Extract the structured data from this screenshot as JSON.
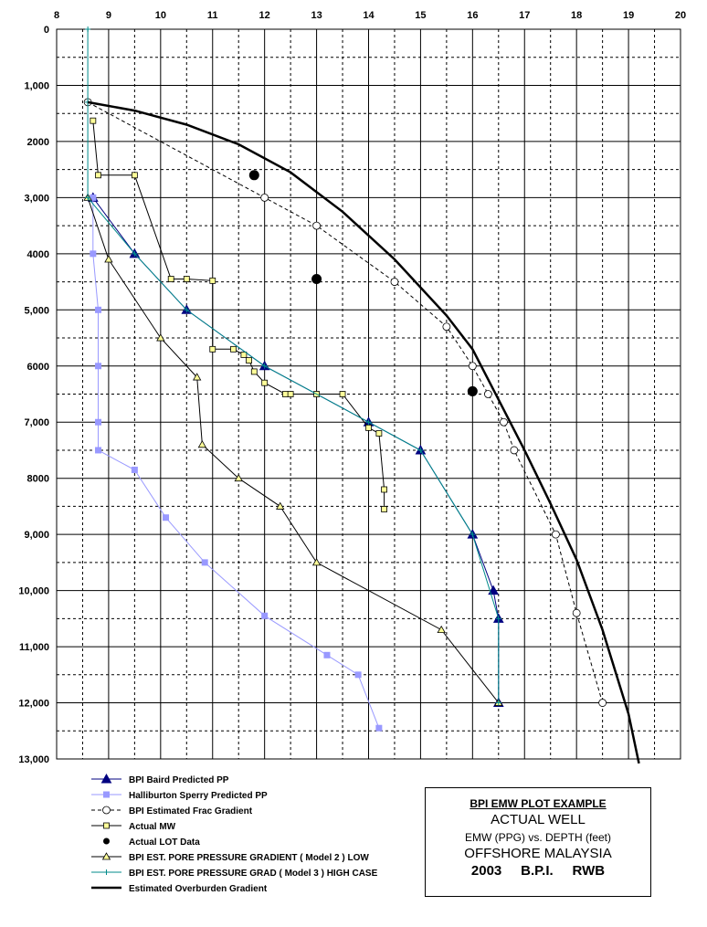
{
  "chart_data": {
    "type": "line",
    "title": "BPI EMW PLOT EXAMPLE",
    "subtitle": "ACTUAL WELL",
    "xlabel": "",
    "ylabel": "",
    "x_axis_position": "top",
    "x_ticks": [
      "8",
      "9",
      "10",
      "11",
      "12",
      "13",
      "14",
      "15",
      "16",
      "17",
      "18",
      "19",
      "20"
    ],
    "y_ticks": [
      "0",
      "1,000",
      "2000",
      "3,000",
      "4000",
      "5,000",
      "6000",
      "7,000",
      "8000",
      "9,000",
      "10,000",
      "11,000",
      "12,000",
      "13,000"
    ],
    "xlim": [
      8,
      20
    ],
    "ylim": [
      0,
      13000
    ],
    "y_inverted": true,
    "grid": true,
    "legend_placement": "bottom-left",
    "series": [
      {
        "name": "BPI Baird Predicted PP",
        "color": "#000080",
        "marker": "triangle-filled",
        "dash": "",
        "points": [
          [
            8.7,
            3000
          ],
          [
            9.5,
            4000
          ],
          [
            10.5,
            5000
          ],
          [
            12,
            6000
          ],
          [
            14,
            7000
          ],
          [
            15,
            7500
          ],
          [
            16,
            9000
          ],
          [
            16.4,
            10000
          ],
          [
            16.5,
            10500
          ],
          [
            16.5,
            12000
          ]
        ]
      },
      {
        "name": "Halliburton Sperry Predicted PP",
        "color": "#9999ff",
        "marker": "square-filled",
        "dash": "",
        "points": [
          [
            8.7,
            3000
          ],
          [
            8.7,
            4000
          ],
          [
            8.8,
            5000
          ],
          [
            8.8,
            6000
          ],
          [
            8.8,
            7000
          ],
          [
            8.8,
            7500
          ],
          [
            9.5,
            7850
          ],
          [
            10.1,
            8700
          ],
          [
            10.85,
            9500
          ],
          [
            12,
            10450
          ],
          [
            13.2,
            11150
          ],
          [
            13.8,
            11500
          ],
          [
            14.2,
            12450
          ]
        ]
      },
      {
        "name": "BPI Estimated Frac Gradient",
        "color": "#000000",
        "marker": "circle-open",
        "dash": "4,3",
        "points": [
          [
            8.6,
            1300
          ],
          [
            12,
            3000
          ],
          [
            13,
            3500
          ],
          [
            14.5,
            4500
          ],
          [
            15.5,
            5300
          ],
          [
            16,
            6000
          ],
          [
            16.3,
            6500
          ],
          [
            16.6,
            7000
          ],
          [
            16.8,
            7500
          ],
          [
            17.6,
            9000
          ],
          [
            18,
            10400
          ],
          [
            18.5,
            12000
          ]
        ]
      },
      {
        "name": "Actual MW",
        "color": "#000000",
        "marker": "square-yellow",
        "dash": "",
        "points": [
          [
            8.7,
            1630
          ],
          [
            8.8,
            2600
          ],
          [
            9.5,
            2600
          ],
          [
            10.2,
            4450
          ],
          [
            10.5,
            4450
          ],
          [
            11,
            4480
          ],
          [
            11,
            5700
          ],
          [
            11.4,
            5700
          ],
          [
            11.6,
            5800
          ],
          [
            11.7,
            5900
          ],
          [
            11.8,
            6100
          ],
          [
            12,
            6300
          ],
          [
            12.4,
            6500
          ],
          [
            12.5,
            6500
          ],
          [
            13,
            6500
          ],
          [
            13.5,
            6500
          ],
          [
            14,
            7100
          ],
          [
            14.2,
            7200
          ],
          [
            14.3,
            8200
          ],
          [
            14.3,
            8550
          ]
        ]
      },
      {
        "name": "Actual LOT Data",
        "color": "#000000",
        "marker": "circle-filled-large",
        "dash": "none",
        "points": [
          [
            11.8,
            2600
          ],
          [
            13,
            4450
          ],
          [
            16,
            6450
          ]
        ]
      },
      {
        "name": "BPI EST. PORE PRESSURE GRADIENT ( Model 2 ) LOW",
        "color": "#000000",
        "marker": "triangle-yellow",
        "dash": "",
        "points": [
          [
            8.6,
            3000
          ],
          [
            9,
            4100
          ],
          [
            10,
            5500
          ],
          [
            10.7,
            6200
          ],
          [
            10.8,
            7400
          ],
          [
            11.5,
            8000
          ],
          [
            12.3,
            8500
          ],
          [
            13,
            9500
          ],
          [
            15.4,
            10700
          ],
          [
            16.5,
            12000
          ]
        ]
      },
      {
        "name": "BPI EST.  PORE  PRESSURE GRAD ( Model 3 ) HIGH CASE",
        "color": "#008b8b",
        "marker": "plus",
        "dash": "",
        "points": [
          [
            8.6,
            0
          ],
          [
            8.6,
            1300
          ],
          [
            8.6,
            3000
          ],
          [
            9.5,
            4000
          ],
          [
            10.5,
            5000
          ],
          [
            12,
            6000
          ],
          [
            14,
            7000
          ],
          [
            15,
            7500
          ],
          [
            16,
            9000
          ],
          [
            16.5,
            10500
          ],
          [
            16.5,
            12000
          ]
        ]
      },
      {
        "name": "Estimated Overburden Gradient",
        "color": "#000000",
        "marker": "none",
        "dash": "",
        "width": 2.5,
        "points": [
          [
            8.6,
            1300
          ],
          [
            9.5,
            1450
          ],
          [
            10.5,
            1700
          ],
          [
            11.5,
            2050
          ],
          [
            12.5,
            2550
          ],
          [
            13.5,
            3250
          ],
          [
            14.5,
            4100
          ],
          [
            15.5,
            5100
          ],
          [
            16,
            5700
          ],
          [
            16.5,
            6600
          ],
          [
            17,
            7500
          ],
          [
            17.5,
            8450
          ],
          [
            18,
            9450
          ],
          [
            18.5,
            10700
          ],
          [
            19,
            12200
          ],
          [
            19.2,
            13080
          ]
        ]
      }
    ]
  },
  "info_box": {
    "line1": "BPI EMW PLOT EXAMPLE",
    "line2": "ACTUAL WELL",
    "line3": "EMW (PPG) vs. DEPTH (feet)",
    "line4": "OFFSHORE MALAYSIA",
    "line5": "2003     B.P.I.     RWB"
  }
}
